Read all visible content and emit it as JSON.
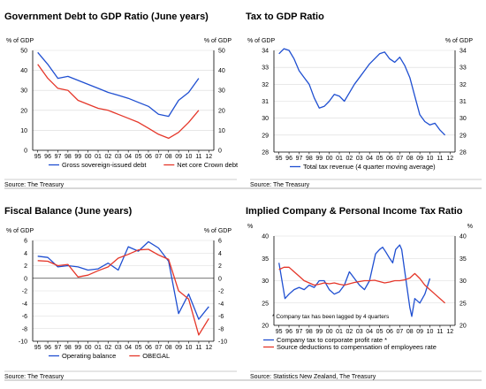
{
  "colors": {
    "blue": "#1f4fd1",
    "red": "#e5372a",
    "grid": "#d9d9d9",
    "rule": "#999999"
  },
  "chart_data": [
    {
      "type": "line",
      "title": "Government Debt to GDP Ratio (June years)",
      "ylabel_left": "% of GDP",
      "ylabel_right": "% of GDP",
      "ylim": [
        0,
        50
      ],
      "yticks": [
        0,
        10,
        20,
        30,
        40,
        50
      ],
      "xlim": [
        1994.5,
        2012.5
      ],
      "xticks": [
        "95",
        "96",
        "97",
        "98",
        "99",
        "00",
        "01",
        "02",
        "03",
        "04",
        "05",
        "06",
        "07",
        "08",
        "09",
        "10",
        "11",
        "12"
      ],
      "series": [
        {
          "name": "Gross sovereign-issued debt",
          "color": "blue",
          "x": [
            1995,
            1996,
            1997,
            1998,
            1999,
            2000,
            2001,
            2002,
            2003,
            2004,
            2005,
            2006,
            2007,
            2008,
            2009,
            2010,
            2011
          ],
          "values": [
            49,
            43,
            36,
            37,
            35,
            33,
            31,
            29,
            27.5,
            26,
            24,
            22,
            18,
            17,
            25,
            29,
            36
          ]
        },
        {
          "name": "Net core Crown debt",
          "color": "red",
          "x": [
            1995,
            1996,
            1997,
            1998,
            1999,
            2000,
            2001,
            2002,
            2003,
            2004,
            2005,
            2006,
            2007,
            2008,
            2009,
            2010,
            2011
          ],
          "values": [
            43,
            36,
            31,
            30,
            25,
            23,
            21,
            20,
            18,
            16,
            14,
            11,
            8,
            6,
            9,
            14,
            20
          ]
        }
      ],
      "source": "Source: The Treasury"
    },
    {
      "type": "line",
      "title": "Tax to GDP Ratio",
      "ylabel_left": "% of GDP",
      "ylabel_right": "% of GDP",
      "ylim": [
        28,
        34
      ],
      "yticks": [
        28,
        29,
        30,
        31,
        32,
        33,
        34
      ],
      "xlim": [
        1994.5,
        2012.5
      ],
      "xticks": [
        "95",
        "96",
        "97",
        "98",
        "99",
        "00",
        "01",
        "02",
        "03",
        "04",
        "05",
        "06",
        "07",
        "08",
        "09",
        "10",
        "11",
        "12"
      ],
      "series": [
        {
          "name": "Total tax revenue (4 quarter moving average)",
          "color": "blue",
          "x": [
            1995,
            1995.5,
            1996,
            1996.5,
            1997,
            1997.5,
            1998,
            1998.5,
            1999,
            1999.5,
            2000,
            2000.5,
            2001,
            2001.5,
            2002,
            2002.5,
            2003,
            2003.5,
            2004,
            2004.5,
            2005,
            2005.5,
            2006,
            2006.5,
            2007,
            2007.5,
            2008,
            2008.5,
            2009,
            2009.5,
            2010,
            2010.5,
            2011,
            2011.5
          ],
          "values": [
            33.8,
            34.1,
            34.0,
            33.5,
            32.8,
            32.4,
            32.0,
            31.2,
            30.6,
            30.7,
            31.0,
            31.4,
            31.3,
            31.0,
            31.5,
            32.0,
            32.4,
            32.8,
            33.2,
            33.5,
            33.8,
            33.9,
            33.5,
            33.3,
            33.6,
            33.1,
            32.4,
            31.3,
            30.2,
            29.8,
            29.6,
            29.7,
            29.3,
            29.0
          ]
        }
      ],
      "source": "Source: The Treasury"
    },
    {
      "type": "line",
      "title": "Fiscal Balance (June years)",
      "ylabel_left": "% of GDP",
      "ylabel_right": "% of GDP",
      "ylim": [
        -10,
        6
      ],
      "yticks": [
        -10,
        -8,
        -6,
        -4,
        -2,
        0,
        2,
        4,
        6
      ],
      "xlim": [
        1994.5,
        2012.5
      ],
      "xticks": [
        "95",
        "96",
        "97",
        "98",
        "99",
        "00",
        "01",
        "02",
        "03",
        "04",
        "05",
        "06",
        "07",
        "08",
        "09",
        "10",
        "11",
        "12"
      ],
      "series": [
        {
          "name": "Operating balance",
          "color": "blue",
          "x": [
            1995,
            1996,
            1997,
            1998,
            1999,
            2000,
            2001,
            2002,
            2003,
            2004,
            2005,
            2006,
            2007,
            2008,
            2009,
            2010,
            2011,
            2012
          ],
          "values": [
            3.5,
            3.3,
            1.8,
            2.0,
            1.8,
            1.3,
            1.5,
            2.4,
            1.3,
            5.0,
            4.3,
            5.8,
            4.8,
            2.7,
            -5.6,
            -2.5,
            -6.5,
            -4.5
          ]
        },
        {
          "name": "OBEGAL",
          "color": "red",
          "x": [
            1995,
            1996,
            1997,
            1998,
            1999,
            2000,
            2001,
            2002,
            2003,
            2004,
            2005,
            2006,
            2007,
            2008,
            2009,
            2010,
            2011,
            2012
          ],
          "values": [
            2.8,
            2.7,
            2.0,
            2.2,
            0.2,
            0.5,
            1.2,
            1.8,
            3.2,
            3.8,
            4.5,
            4.6,
            3.7,
            3.0,
            -2.0,
            -3.3,
            -9.0,
            -6.4
          ]
        }
      ],
      "source": "Source: The Treasury"
    },
    {
      "type": "line",
      "title": "Implied Company & Personal Income Tax Ratio",
      "ylabel_left": "%",
      "ylabel_right": "%",
      "ylim_left": [
        20,
        40
      ],
      "yticks_left": [
        20,
        25,
        30,
        35,
        40
      ],
      "ylim_right": [
        20,
        40
      ],
      "yticks_right": [
        20,
        25,
        30,
        35,
        40
      ],
      "xlim": [
        1994.5,
        2012.5
      ],
      "xticks": [
        "95",
        "96",
        "97",
        "98",
        "99",
        "00",
        "01",
        "02",
        "03",
        "04",
        "05",
        "06",
        "07",
        "08",
        "09",
        "10",
        "11",
        "12"
      ],
      "series": [
        {
          "name": "Company tax to corporate profit rate *",
          "color": "blue",
          "x": [
            1995,
            1995.3,
            1995.6,
            1996,
            1996.5,
            1997,
            1997.5,
            1998,
            1998.5,
            1999,
            1999.5,
            2000,
            2000.5,
            2001,
            2001.5,
            2002,
            2002.5,
            2003,
            2003.5,
            2004,
            2004.3,
            2004.6,
            2005,
            2005.3,
            2005.6,
            2006,
            2006.3,
            2006.6,
            2007,
            2007.2,
            2007.5,
            2008,
            2008.2,
            2008.5,
            2009,
            2009.5,
            2010
          ],
          "values": [
            34,
            30,
            26,
            27,
            28,
            28.5,
            28,
            29,
            28.5,
            30,
            30,
            28,
            27,
            27.5,
            29,
            32,
            30.5,
            29,
            28,
            30,
            33,
            36,
            37,
            37.5,
            36.5,
            35,
            34,
            37,
            38,
            37,
            32,
            24,
            22,
            26,
            25,
            27,
            30.5
          ]
        },
        {
          "name": "Source deductions to compensation of employees rate",
          "color": "red",
          "x": [
            1995,
            1995.5,
            1996,
            1996.5,
            1997,
            1997.5,
            1998,
            1998.5,
            1999,
            1999.5,
            2000,
            2000.5,
            2001,
            2001.5,
            2002,
            2002.5,
            2003,
            2003.5,
            2004,
            2004.5,
            2005,
            2005.5,
            2006,
            2006.5,
            2007,
            2007.5,
            2008,
            2008.5,
            2009,
            2009.5,
            2010,
            2010.5,
            2011,
            2011.5
          ],
          "values": [
            32.5,
            33,
            33,
            32,
            31,
            30,
            29.5,
            29,
            29.2,
            29.5,
            29.3,
            29.5,
            29.2,
            29,
            29.3,
            29.6,
            29.8,
            30,
            30,
            30.1,
            29.8,
            29.5,
            29.7,
            30,
            30,
            30.2,
            30.6,
            31.6,
            30.5,
            29,
            28,
            27,
            26,
            25
          ]
        }
      ],
      "note": "* Company tax has been lagged by 4 quarters",
      "source": "Source: Statistics New Zealand, The Treasury"
    }
  ]
}
